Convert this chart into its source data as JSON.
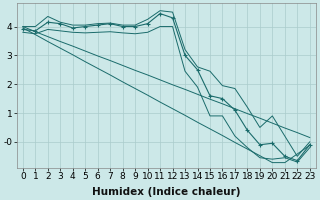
{
  "xlabel": "Humidex (Indice chaleur)",
  "background_color": "#cce8e8",
  "grid_color": "#aacccc",
  "line_color": "#1a6b6b",
  "x_values": [
    0,
    1,
    2,
    3,
    4,
    5,
    6,
    7,
    8,
    9,
    10,
    11,
    12,
    13,
    14,
    15,
    16,
    17,
    18,
    19,
    20,
    21,
    22,
    23
  ],
  "y_main": [
    3.9,
    3.85,
    4.15,
    4.1,
    3.95,
    4.0,
    4.05,
    4.1,
    4.0,
    4.0,
    4.1,
    4.45,
    4.3,
    3.0,
    2.5,
    1.6,
    1.5,
    1.1,
    0.4,
    -0.1,
    -0.05,
    -0.5,
    -0.65,
    -0.1
  ],
  "y_upper": [
    4.0,
    4.0,
    4.35,
    4.15,
    4.05,
    4.05,
    4.1,
    4.12,
    4.05,
    4.05,
    4.25,
    4.55,
    4.5,
    3.2,
    2.6,
    2.45,
    1.95,
    1.85,
    1.2,
    0.5,
    0.9,
    0.2,
    -0.5,
    0.0
  ],
  "y_lower": [
    3.8,
    3.75,
    3.9,
    3.85,
    3.8,
    3.78,
    3.8,
    3.82,
    3.78,
    3.75,
    3.8,
    4.0,
    4.0,
    2.45,
    1.9,
    0.9,
    0.9,
    0.2,
    -0.2,
    -0.55,
    -0.6,
    -0.55,
    -0.7,
    -0.2
  ],
  "y_trend1": [
    4.0,
    3.82,
    3.65,
    3.48,
    3.32,
    3.15,
    2.98,
    2.82,
    2.65,
    2.48,
    2.32,
    2.15,
    1.98,
    1.82,
    1.65,
    1.48,
    1.32,
    1.15,
    0.98,
    0.82,
    0.65,
    0.48,
    0.32,
    0.15
  ],
  "y_trend2": [
    3.95,
    3.72,
    3.48,
    3.25,
    3.02,
    2.78,
    2.55,
    2.32,
    2.08,
    1.85,
    1.62,
    1.38,
    1.15,
    0.92,
    0.68,
    0.45,
    0.22,
    -0.02,
    -0.25,
    -0.48,
    -0.72,
    -0.72,
    -0.42,
    -0.12
  ],
  "ylim": [
    -0.9,
    4.8
  ],
  "xlim": [
    -0.5,
    23.5
  ],
  "yticks": [
    0,
    1,
    2,
    3,
    4
  ],
  "ytick_labels": [
    "-0",
    "1",
    "2",
    "3",
    "4"
  ],
  "xticks": [
    0,
    1,
    2,
    3,
    4,
    5,
    6,
    7,
    8,
    9,
    10,
    11,
    12,
    13,
    14,
    15,
    16,
    17,
    18,
    19,
    20,
    21,
    22,
    23
  ],
  "xlabel_fontsize": 7.5,
  "tick_fontsize": 6.5
}
